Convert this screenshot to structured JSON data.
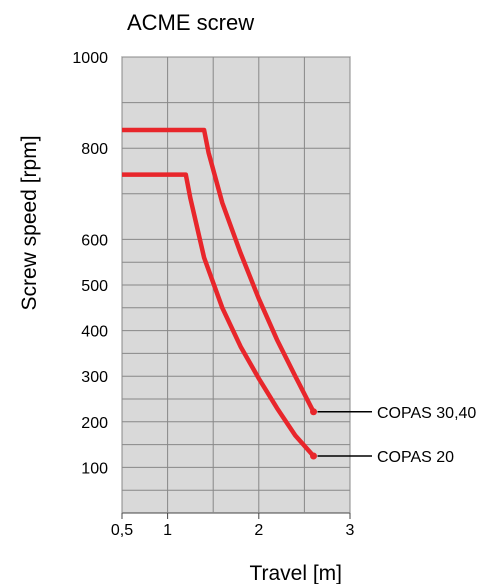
{
  "chart_data": {
    "type": "line",
    "title": "ACME screw",
    "xlabel": "Travel [m]",
    "ylabel": "Screw speed [rpm]",
    "xlim": [
      0.5,
      3
    ],
    "ylim": [
      0,
      1000
    ],
    "x_ticks": [
      {
        "value": 0.5,
        "label": "0,5"
      },
      {
        "value": 1,
        "label": "1"
      },
      {
        "value": 2,
        "label": "2"
      },
      {
        "value": 3,
        "label": "3"
      }
    ],
    "x_grid": [
      0.5,
      1,
      1.5,
      2,
      2.5,
      3
    ],
    "y_ticks": [
      {
        "value": 100,
        "label": "100"
      },
      {
        "value": 200,
        "label": "200"
      },
      {
        "value": 300,
        "label": "300"
      },
      {
        "value": 400,
        "label": "400"
      },
      {
        "value": 500,
        "label": "500"
      },
      {
        "value": 600,
        "label": "600"
      },
      {
        "value": 800,
        "label": "800"
      },
      {
        "value": 1000,
        "label": "1000"
      }
    ],
    "y_grid": [
      50,
      100,
      150,
      200,
      250,
      300,
      350,
      400,
      450,
      500,
      550,
      600,
      700,
      800,
      900,
      1000
    ],
    "grid": true,
    "plot_background": "#d9d9d9",
    "grid_color": "#888888",
    "series": [
      {
        "name": "COPAS 30,40",
        "color": "#e8262b",
        "points": [
          [
            0.5,
            840
          ],
          [
            1.4,
            840
          ],
          [
            1.45,
            790
          ],
          [
            1.6,
            680
          ],
          [
            1.8,
            570
          ],
          [
            2.0,
            470
          ],
          [
            2.2,
            380
          ],
          [
            2.4,
            300
          ],
          [
            2.6,
            222
          ]
        ]
      },
      {
        "name": "COPAS 20",
        "color": "#e8262b",
        "points": [
          [
            0.5,
            742
          ],
          [
            1.2,
            742
          ],
          [
            1.25,
            690
          ],
          [
            1.4,
            560
          ],
          [
            1.6,
            450
          ],
          [
            1.8,
            365
          ],
          [
            2.0,
            295
          ],
          [
            2.2,
            230
          ],
          [
            2.4,
            170
          ],
          [
            2.6,
            125
          ]
        ]
      }
    ]
  }
}
